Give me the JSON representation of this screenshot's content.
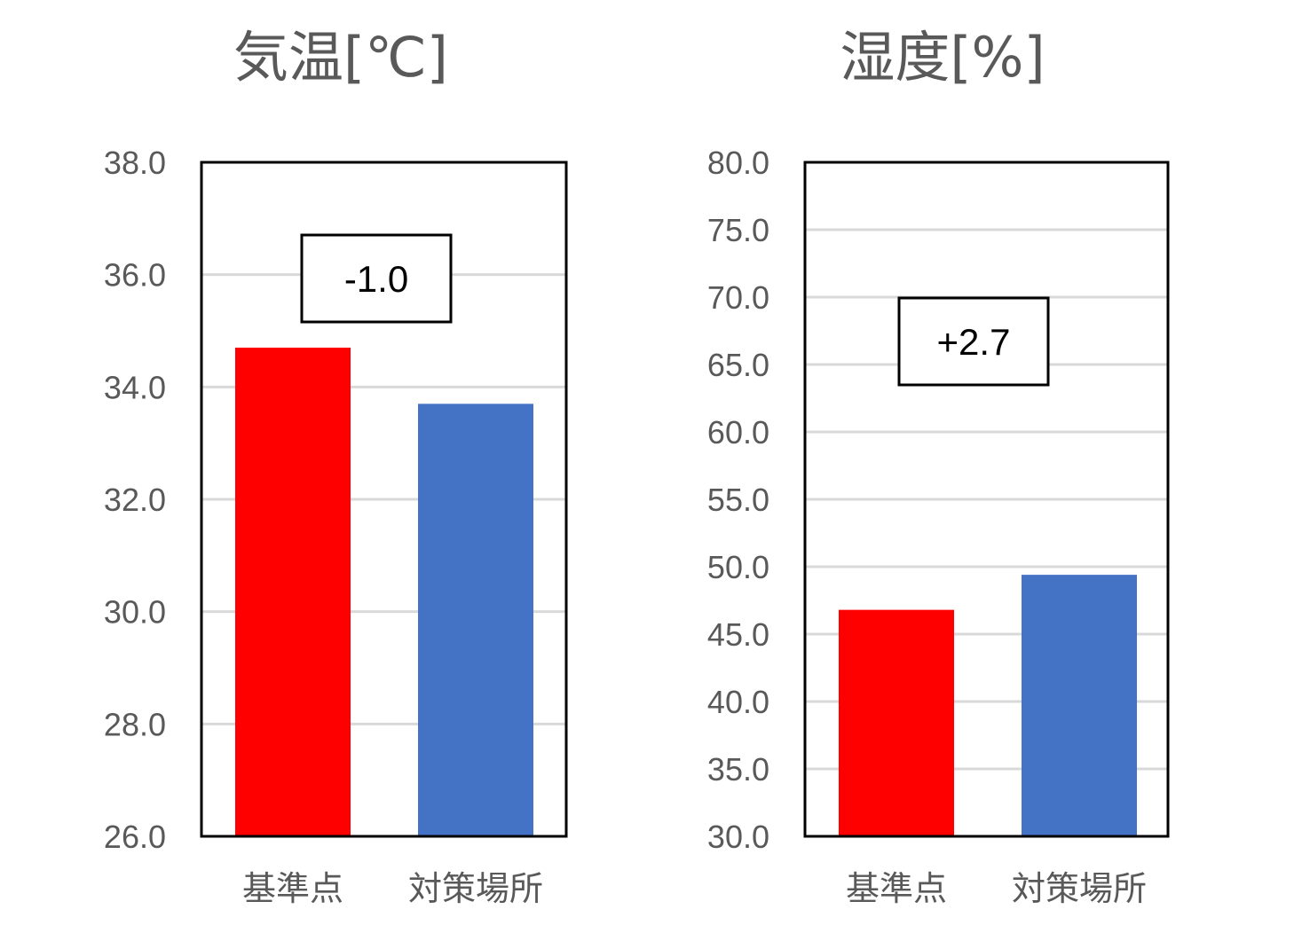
{
  "chart_data": [
    {
      "type": "bar",
      "title": "気温[℃]",
      "categories": [
        "基準点",
        "対策場所"
      ],
      "values": [
        34.7,
        33.7
      ],
      "ylim": [
        26.0,
        38.0
      ],
      "yticks": [
        "26.0",
        "28.0",
        "30.0",
        "32.0",
        "34.0",
        "36.0",
        "38.0"
      ],
      "ytick_values": [
        26,
        28,
        30,
        32,
        34,
        36,
        38
      ],
      "colors": [
        "#ff0000",
        "#4472c4"
      ],
      "annotation": "-1.0",
      "grid": true
    },
    {
      "type": "bar",
      "title": "湿度[%]",
      "categories": [
        "基準点",
        "対策場所"
      ],
      "values": [
        46.8,
        49.4
      ],
      "ylim": [
        30.0,
        80.0
      ],
      "yticks": [
        "30.0",
        "35.0",
        "40.0",
        "45.0",
        "50.0",
        "55.0",
        "60.0",
        "65.0",
        "70.0",
        "75.0",
        "80.0"
      ],
      "ytick_values": [
        30,
        35,
        40,
        45,
        50,
        55,
        60,
        65,
        70,
        75,
        80
      ],
      "colors": [
        "#ff0000",
        "#4472c4"
      ],
      "annotation": "+2.7",
      "grid": true
    }
  ]
}
